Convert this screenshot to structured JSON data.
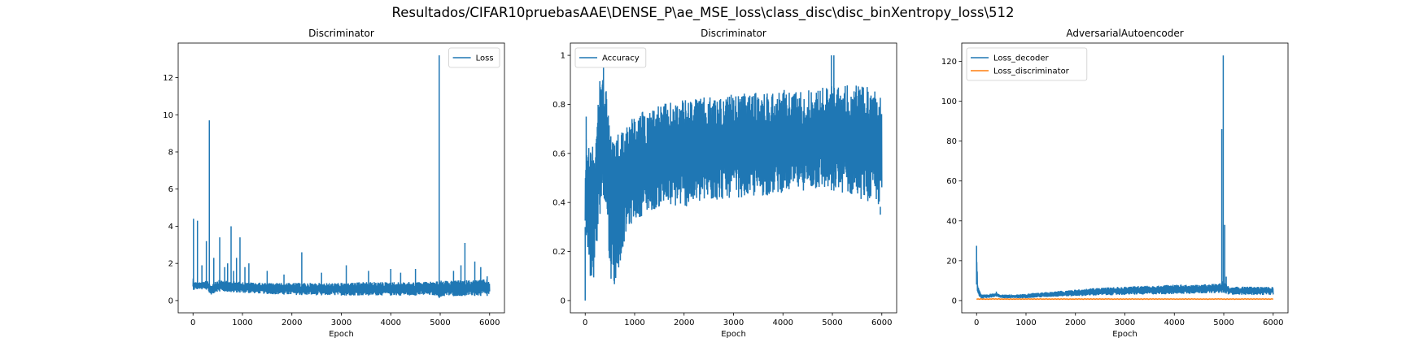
{
  "figure": {
    "suptitle": "Resultados/CIFAR10pruebasAAE\\DENSE_P\\ae_MSE_loss\\class_disc\\disc_binXentropy_loss\\512"
  },
  "colors": {
    "series_blue": "#1f77b4",
    "series_orange": "#ff7f0e"
  },
  "chart_data": [
    {
      "type": "line",
      "title": "Discriminator",
      "xlabel": "Epoch",
      "ylabel": "",
      "xlim": [
        -300,
        6300
      ],
      "ylim": [
        -0.66,
        13.86
      ],
      "xticks": [
        0,
        1000,
        2000,
        3000,
        4000,
        5000,
        6000
      ],
      "yticks": [
        0,
        2,
        4,
        6,
        8,
        10,
        12
      ],
      "legend": {
        "placement": "top-right",
        "entries": [
          "Loss"
        ]
      },
      "series": [
        {
          "name": "Loss",
          "color": "#1f77b4",
          "x": [
            0,
            20,
            60,
            100,
            200,
            300,
            340,
            380,
            400,
            450,
            500,
            600,
            700,
            800,
            1000,
            1500,
            2000,
            2500,
            3000,
            3500,
            4000,
            4500,
            4950,
            5000,
            5050,
            5500,
            6000
          ],
          "low": [
            0.6,
            0.55,
            0.6,
            0.62,
            0.6,
            0.58,
            0.38,
            0.3,
            0.35,
            0.45,
            0.48,
            0.5,
            0.47,
            0.45,
            0.42,
            0.35,
            0.3,
            0.28,
            0.27,
            0.27,
            0.27,
            0.27,
            0.27,
            0.05,
            0.22,
            0.25,
            0.25
          ],
          "high": [
            1.3,
            1.1,
            1.0,
            1.0,
            1.0,
            1.1,
            0.9,
            0.85,
            1.0,
            1.05,
            1.1,
            1.1,
            1.05,
            1.05,
            1.0,
            0.95,
            0.95,
            0.95,
            0.95,
            1.0,
            1.0,
            1.0,
            1.05,
            1.1,
            1.05,
            1.1,
            1.15
          ],
          "spikes": [
            [
              10,
              4.4
            ],
            [
              90,
              4.3
            ],
            [
              180,
              1.9
            ],
            [
              270,
              3.2
            ],
            [
              330,
              9.7
            ],
            [
              420,
              2.3
            ],
            [
              540,
              3.4
            ],
            [
              640,
              1.8
            ],
            [
              700,
              2.0
            ],
            [
              770,
              4.0
            ],
            [
              820,
              1.6
            ],
            [
              880,
              2.3
            ],
            [
              950,
              3.4
            ],
            [
              1050,
              1.8
            ],
            [
              1130,
              2.0
            ],
            [
              1500,
              1.6
            ],
            [
              1840,
              1.4
            ],
            [
              2200,
              2.6
            ],
            [
              2600,
              1.5
            ],
            [
              3100,
              1.9
            ],
            [
              3550,
              1.6
            ],
            [
              4000,
              1.7
            ],
            [
              4200,
              1.5
            ],
            [
              4500,
              1.7
            ],
            [
              4980,
              13.2
            ],
            [
              5270,
              1.6
            ],
            [
              5420,
              1.9
            ],
            [
              5500,
              3.1
            ],
            [
              5700,
              2.1
            ],
            [
              5820,
              1.8
            ],
            [
              5950,
              1.3
            ]
          ]
        }
      ]
    },
    {
      "type": "line",
      "title": "Discriminator",
      "xlabel": "Epoch",
      "ylabel": "",
      "xlim": [
        -300,
        6300
      ],
      "ylim": [
        -0.05,
        1.05
      ],
      "xticks": [
        0,
        1000,
        2000,
        3000,
        4000,
        5000,
        6000
      ],
      "yticks": [
        0.0,
        0.2,
        0.4,
        0.6,
        0.8,
        1.0
      ],
      "legend": {
        "placement": "top-left",
        "entries": [
          "Accuracy"
        ]
      },
      "series": [
        {
          "name": "Accuracy",
          "color": "#1f77b4",
          "x": [
            0,
            30,
            60,
            100,
            150,
            200,
            250,
            300,
            350,
            400,
            450,
            500,
            600,
            700,
            800,
            900,
            1000,
            1200,
            1500,
            2000,
            2500,
            3000,
            3500,
            4000,
            4500,
            5000,
            5500,
            6000
          ],
          "low": [
            0.3,
            0.25,
            0.2,
            0.05,
            0.05,
            0.12,
            0.2,
            0.35,
            0.45,
            0.4,
            0.3,
            0.1,
            0.05,
            0.15,
            0.25,
            0.3,
            0.33,
            0.35,
            0.38,
            0.38,
            0.4,
            0.42,
            0.42,
            0.44,
            0.45,
            0.45,
            0.42,
            0.38
          ],
          "high": [
            0.55,
            0.75,
            0.65,
            0.6,
            0.65,
            0.7,
            0.85,
            0.9,
            0.95,
            0.92,
            0.85,
            0.7,
            0.66,
            0.7,
            0.72,
            0.75,
            0.75,
            0.78,
            0.8,
            0.82,
            0.83,
            0.84,
            0.85,
            0.86,
            0.86,
            0.88,
            0.88,
            0.86
          ],
          "spikes": [
            [
              0,
              0.0
            ],
            [
              20,
              0.75
            ],
            [
              370,
              0.95
            ],
            [
              4980,
              1.0
            ],
            [
              5030,
              1.0
            ],
            [
              5970,
              0.35
            ]
          ]
        }
      ]
    },
    {
      "type": "line",
      "title": "AdversarialAutoencoder",
      "xlabel": "Epoch",
      "ylabel": "",
      "xlim": [
        -300,
        6300
      ],
      "ylim": [
        -6.15,
        129.2
      ],
      "xticks": [
        0,
        1000,
        2000,
        3000,
        4000,
        5000,
        6000
      ],
      "yticks": [
        0,
        20,
        40,
        60,
        80,
        100,
        120
      ],
      "legend": {
        "placement": "top-left",
        "entries": [
          "Loss_decoder",
          "Loss_discriminator"
        ]
      },
      "series": [
        {
          "name": "Loss_decoder",
          "color": "#1f77b4",
          "x": [
            0,
            20,
            50,
            100,
            200,
            300,
            400,
            500,
            600,
            800,
            1000,
            1500,
            2000,
            2500,
            3000,
            3500,
            4000,
            4500,
            4900,
            5000,
            5100,
            5500,
            6000
          ],
          "low": [
            8,
            4,
            2,
            1.0,
            1.2,
            1.5,
            2.0,
            1.2,
            1.0,
            1.0,
            1.2,
            1.8,
            2.2,
            2.5,
            2.8,
            3.0,
            3.2,
            3.5,
            3.8,
            4.0,
            3.0,
            2.8,
            2.8
          ],
          "high": [
            27,
            9,
            6,
            3,
            3,
            3.5,
            4,
            3,
            3,
            3,
            3.5,
            4.5,
            5.5,
            6.5,
            7,
            7.5,
            8,
            8,
            8.5,
            10,
            7,
            7,
            7
          ],
          "spikes": [
            [
              0,
              27.5
            ],
            [
              400,
              4.5
            ],
            [
              4960,
              86
            ],
            [
              4990,
              123
            ],
            [
              5020,
              38
            ],
            [
              5050,
              12
            ]
          ]
        },
        {
          "name": "Loss_discriminator",
          "color": "#ff7f0e",
          "x": [
            0,
            6000
          ],
          "low": [
            0.6,
            0.6
          ],
          "high": [
            0.9,
            0.9
          ],
          "spikes": []
        }
      ]
    }
  ]
}
